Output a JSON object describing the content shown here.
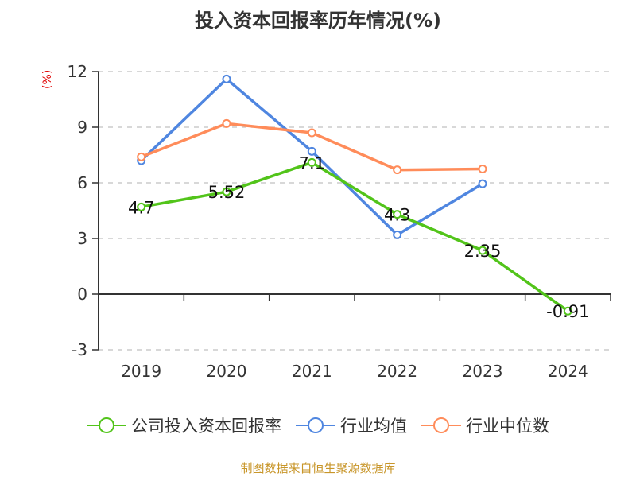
{
  "chart_data": {
    "type": "line",
    "title": "投入资本回报率历年情况(%)",
    "ylabel": "(%)",
    "xlabel": "",
    "categories": [
      "2019",
      "2020",
      "2021",
      "2022",
      "2023",
      "2024"
    ],
    "ylim": [
      -3,
      12
    ],
    "yticks": [
      -3,
      0,
      3,
      6,
      9,
      12
    ],
    "grid": true,
    "legend_position": "bottom",
    "series": [
      {
        "name": "公司投入资本回报率",
        "color": "#52c41a",
        "values": [
          4.7,
          5.52,
          7.1,
          4.3,
          2.35,
          -0.91
        ],
        "labels": [
          "4.7",
          "5.52",
          "7.1",
          "4.3",
          "2.35",
          "-0.91"
        ]
      },
      {
        "name": "行业均值",
        "color": "#4f86e0",
        "values": [
          7.2,
          11.6,
          7.7,
          3.2,
          5.95,
          null
        ]
      },
      {
        "name": "行业中位数",
        "color": "#ff8c5a",
        "values": [
          7.4,
          9.2,
          8.7,
          6.7,
          6.75,
          null
        ]
      }
    ]
  },
  "header": {
    "title": "投入资本回报率历年情况(%)"
  },
  "axis": {
    "unit": "(%)"
  },
  "legend": {
    "items": [
      "公司投入资本回报率",
      "行业均值",
      "行业中位数"
    ]
  },
  "footer": {
    "source": "制图数据来自恒生聚源数据库"
  }
}
